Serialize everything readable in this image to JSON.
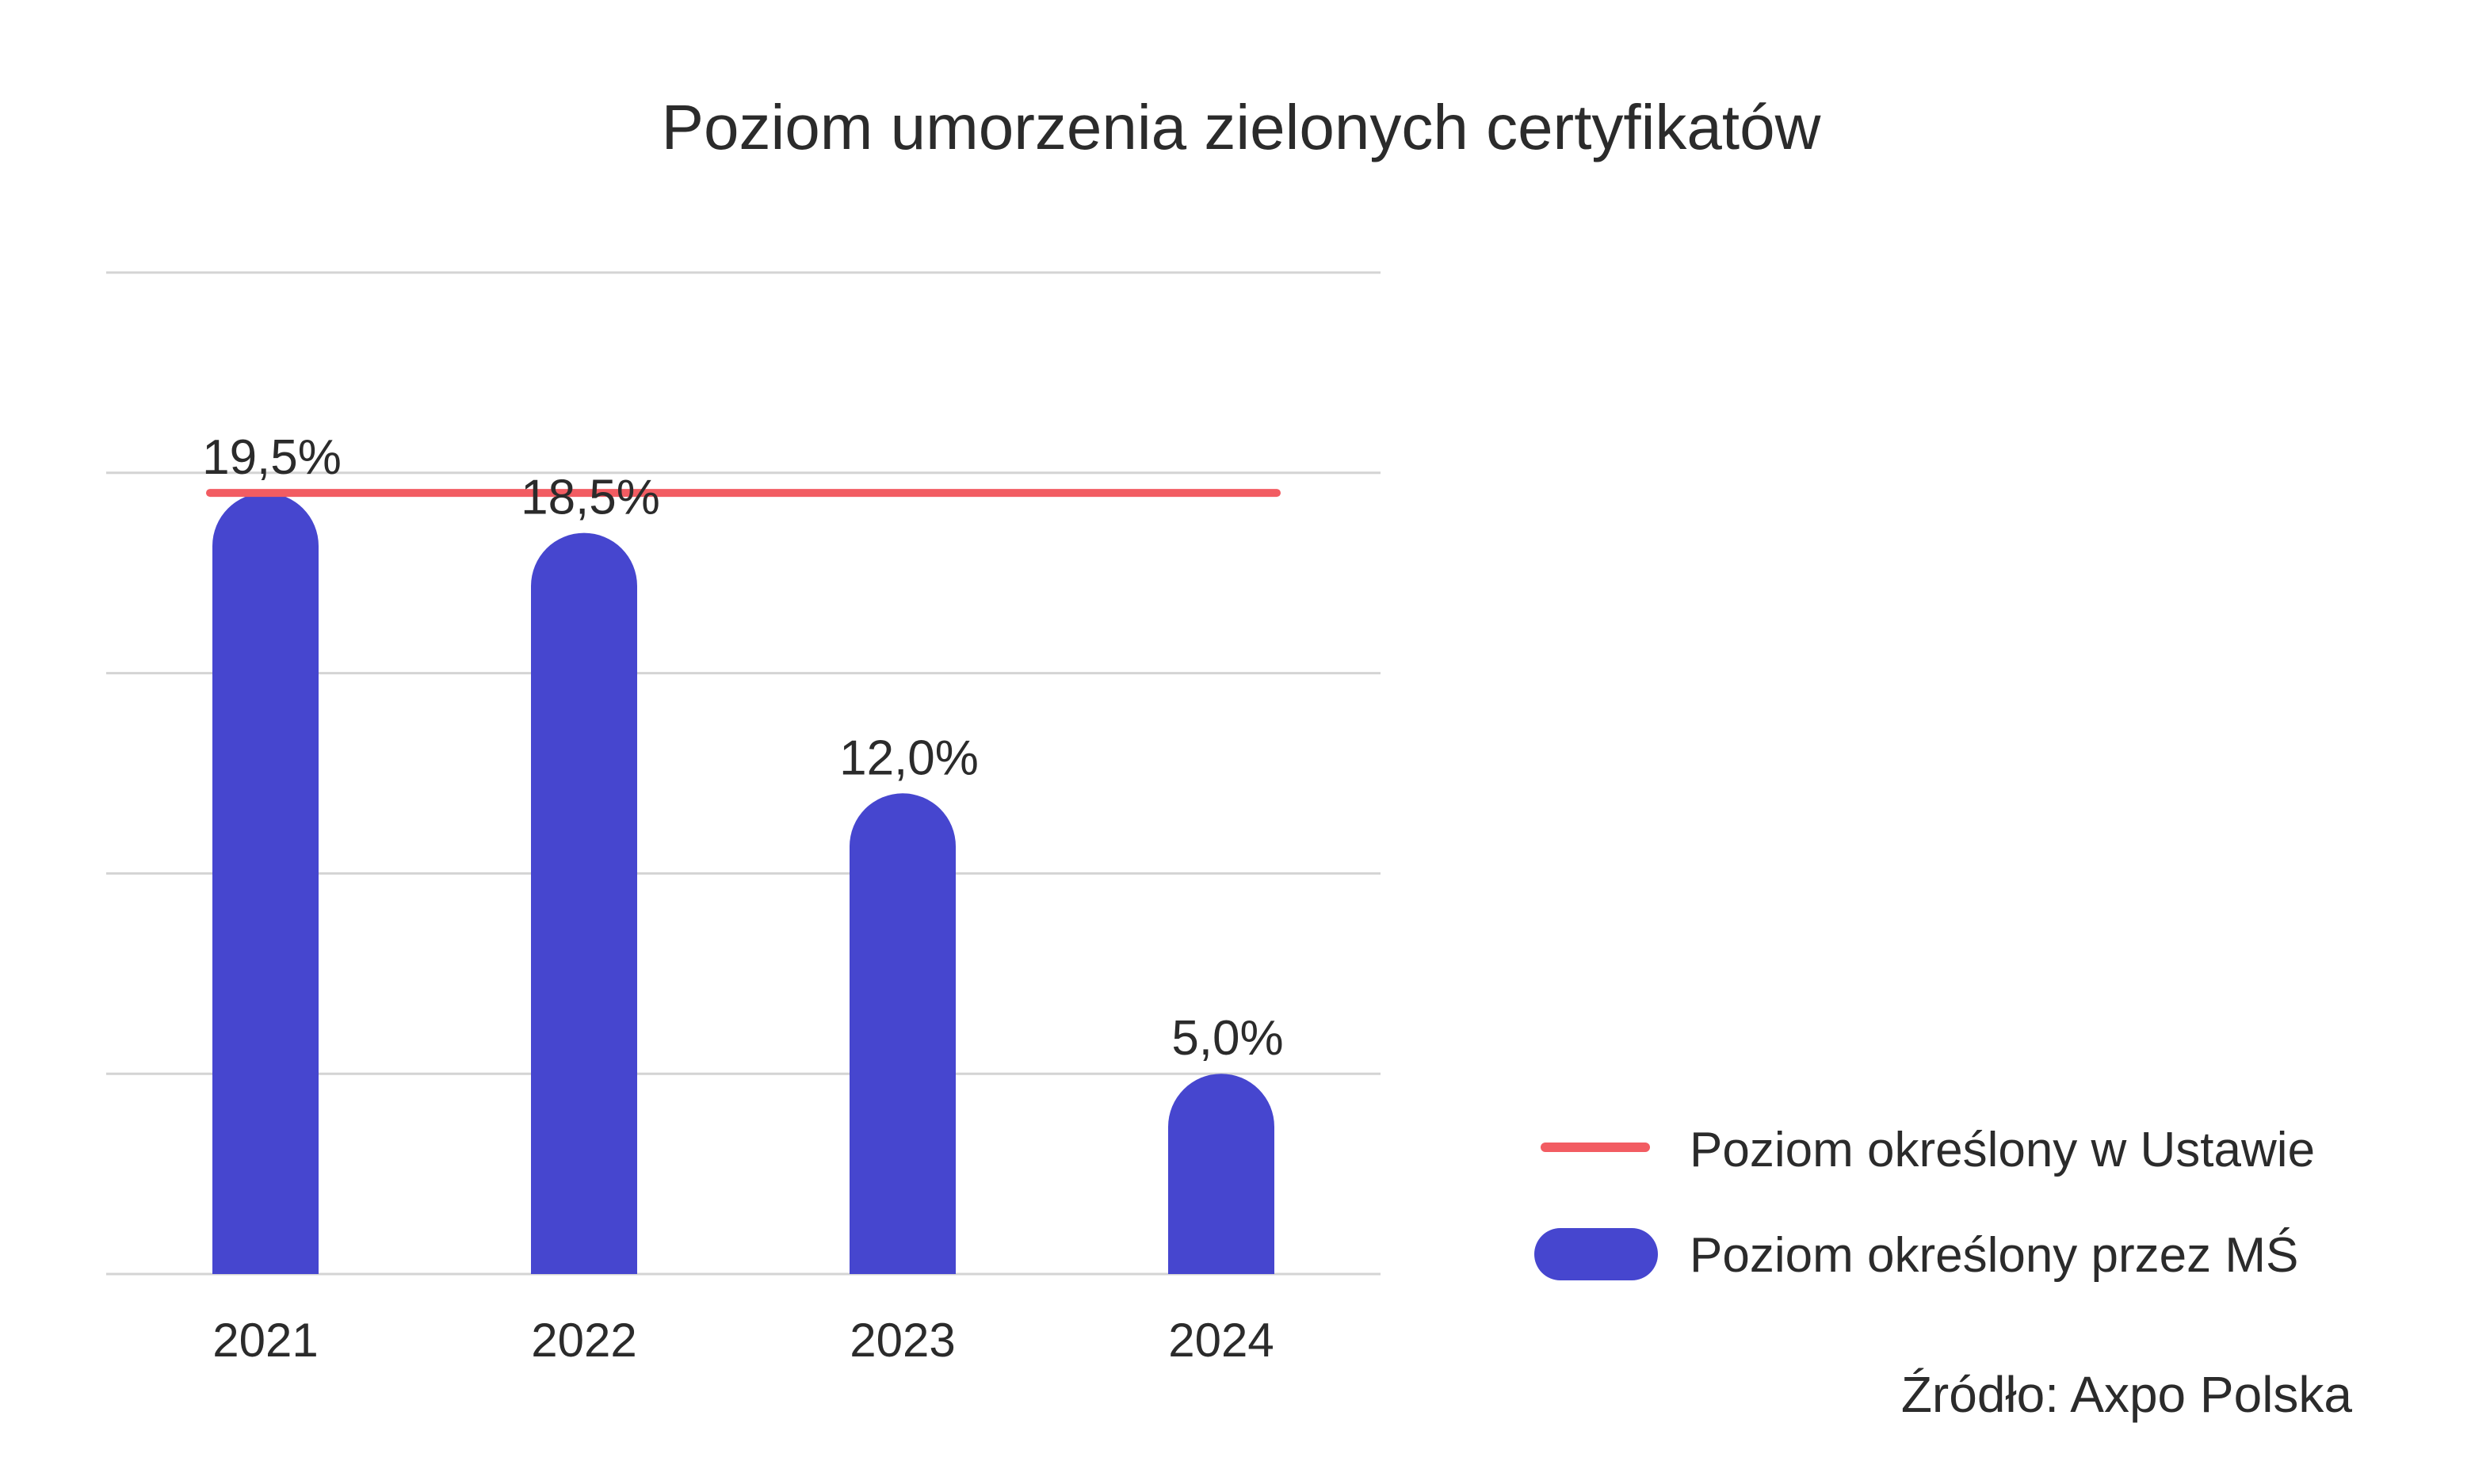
{
  "chart_data": {
    "type": "bar",
    "title": "Poziom umorzenia zielonych certyfikatów",
    "categories": [
      "2021",
      "2022",
      "2023",
      "2024"
    ],
    "series": [
      {
        "name": "Poziom określony przez MŚ",
        "type": "bar",
        "values": [
          19.5,
          18.5,
          12.0,
          5.0
        ],
        "labels": [
          "19,5%",
          "18,5%",
          "12,0%",
          "5,0%"
        ],
        "color": "#4646cf"
      },
      {
        "name": "Poziom określony w Ustawie",
        "type": "line",
        "values": [
          19.5,
          19.5,
          19.5,
          19.5
        ],
        "color": "#f25c62"
      }
    ],
    "ylim": [
      0,
      25
    ],
    "grid": true,
    "legend_position": "bottom-right",
    "source": "Źródło: Axpo Polska"
  }
}
